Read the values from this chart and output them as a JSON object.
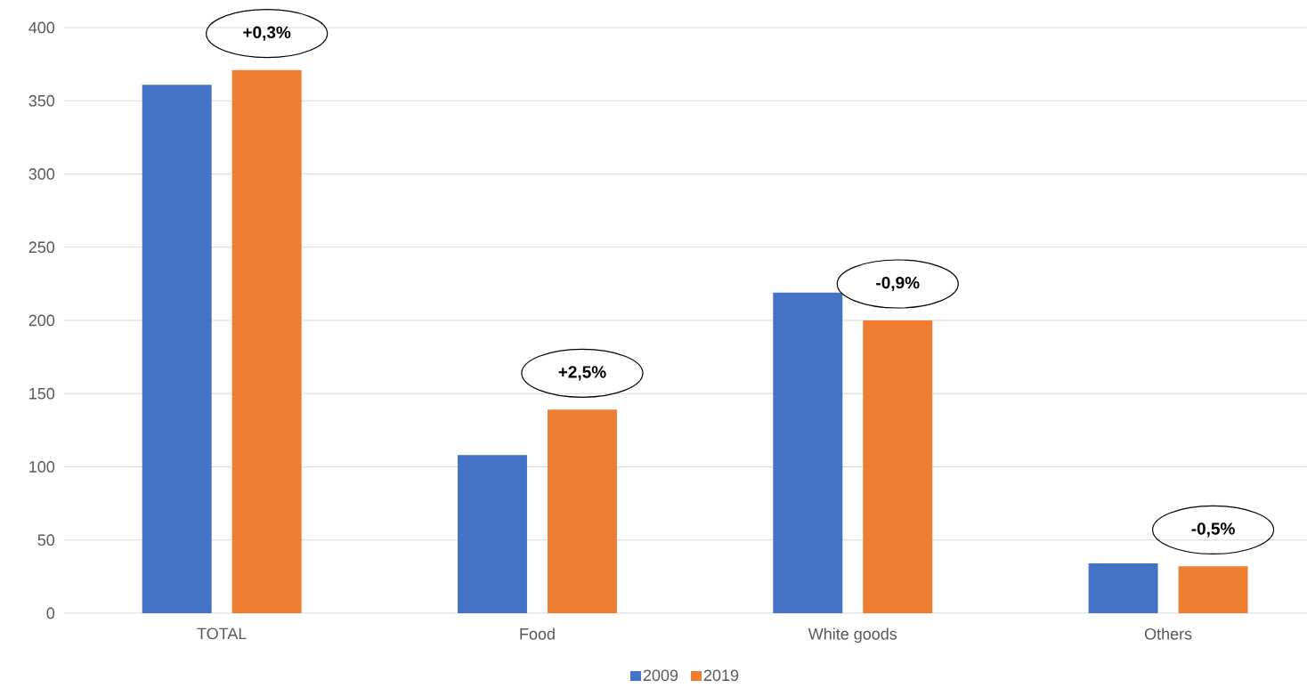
{
  "chart_data": {
    "type": "bar",
    "categories": [
      "TOTAL",
      "Food",
      "White goods",
      "Others"
    ],
    "series": [
      {
        "name": "2009",
        "color": "#4472c4",
        "values": [
          361,
          108,
          219,
          34
        ]
      },
      {
        "name": "2019",
        "color": "#ed7d31",
        "values": [
          371,
          139,
          200,
          32
        ]
      }
    ],
    "ylim": [
      0,
      400
    ],
    "yticks": [
      0,
      50,
      100,
      150,
      200,
      250,
      300,
      350,
      400
    ],
    "grid": "y",
    "legend": "bottom",
    "annotations": [
      "+0,3%",
      "+2,5%",
      "-0,9%",
      "-0,5%"
    ]
  }
}
